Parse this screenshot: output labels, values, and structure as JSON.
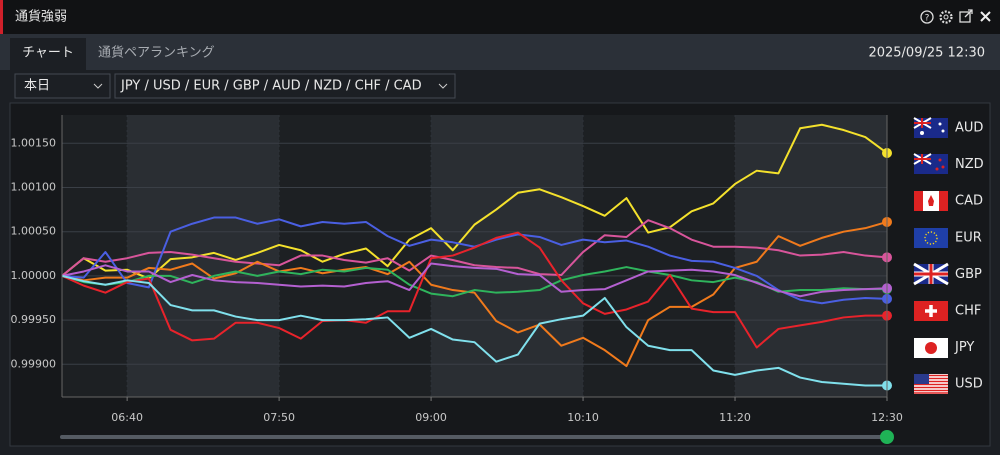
{
  "header": {
    "title": "通貨強弱"
  },
  "tabs": [
    "チャート",
    "通貨ペアランキング"
  ],
  "timestamp": "2025/09/25 12:30",
  "filters": {
    "period": "本日",
    "currencies": "JPY / USD / EUR / GBP / AUD / NZD / CHF / CAD"
  },
  "chart_data": {
    "type": "line",
    "categories": [
      null,
      null,
      null,
      "06:40",
      null,
      null,
      null,
      null,
      null,
      null,
      "07:50",
      null,
      null,
      null,
      null,
      null,
      null,
      "09:00",
      null,
      null,
      null,
      null,
      null,
      null,
      "10:10",
      null,
      null,
      null,
      null,
      null,
      null,
      "11:20",
      null,
      null,
      null,
      null,
      null,
      null,
      "12:30"
    ],
    "ylim": [
      0.99863,
      1.00182
    ],
    "yticks": [
      {
        "value": 0.999,
        "label": "0.99900"
      },
      {
        "value": 0.9995,
        "label": "0.99950"
      },
      {
        "value": 1,
        "label": "1.00000"
      },
      {
        "value": 1.0005,
        "label": "1.00050"
      },
      {
        "value": 1.001,
        "label": "1.00100"
      },
      {
        "value": 1.0015,
        "label": "1.00150"
      }
    ],
    "grid": true,
    "series": [
      {
        "name": "AUD",
        "color": "#f4e12c",
        "values": [
          1.0,
          1.0002,
          1.00006,
          1.00007,
          0.99997,
          1.00019,
          1.00021,
          1.00026,
          1.00018,
          1.00026,
          1.00035,
          1.00029,
          1.00016,
          1.00025,
          1.00031,
          1.00011,
          1.00041,
          1.00054,
          1.00029,
          1.00058,
          1.00075,
          1.00094,
          1.00098,
          1.00089,
          1.00079,
          1.00068,
          1.00088,
          1.00049,
          1.00055,
          1.00073,
          1.00082,
          1.00104,
          1.00119,
          1.00116,
          1.00167,
          1.00171,
          1.00165,
          1.00157,
          1.00139
        ]
      },
      {
        "name": "NZD",
        "color": "#d8559b",
        "values": [
          1.0,
          1.0002,
          1.00016,
          1.0002,
          1.00026,
          1.00027,
          1.00024,
          1.0002,
          1.00016,
          1.00014,
          1.00012,
          1.00023,
          1.00023,
          1.00018,
          1.00015,
          1.0002,
          1.00006,
          1.00023,
          1.00018,
          1.00012,
          1.0001,
          1.00009,
          1.00002,
          1.00001,
          1.00027,
          1.00046,
          1.00044,
          1.00063,
          1.00054,
          1.00041,
          1.00033,
          1.00033,
          1.00032,
          1.00029,
          1.00023,
          1.00024,
          1.00027,
          1.00023,
          1.00021
        ]
      },
      {
        "name": "CAD",
        "color": "#f07a1c",
        "values": [
          1.0,
          0.99995,
          0.99998,
          0.99998,
          1.00009,
          1.00007,
          1.00014,
          0.99997,
          1.00003,
          1.00016,
          1.00005,
          1.00009,
          1.00003,
          1.00007,
          1.0001,
          1.00002,
          1.00016,
          0.9999,
          0.99984,
          0.99981,
          0.99949,
          0.99936,
          0.99945,
          0.99921,
          0.9993,
          0.99916,
          0.99898,
          0.9995,
          0.99965,
          0.99965,
          0.99979,
          1.00009,
          1.00016,
          1.00045,
          1.00034,
          1.00043,
          1.0005,
          1.00054,
          1.00061
        ]
      },
      {
        "name": "EUR",
        "color": "#4a5fe2",
        "values": [
          1.0,
          0.99998,
          1.00027,
          0.99992,
          0.99987,
          1.0005,
          1.00059,
          1.00066,
          1.00066,
          1.00059,
          1.00064,
          1.00056,
          1.00061,
          1.00059,
          1.00061,
          1.00045,
          1.00034,
          1.00041,
          1.00038,
          1.00033,
          1.00041,
          1.00047,
          1.00044,
          1.00035,
          1.00041,
          1.00038,
          1.0004,
          1.00033,
          1.00023,
          1.00017,
          1.00016,
          1.00009,
          1.0,
          0.99984,
          0.99973,
          0.99969,
          0.99973,
          0.99975,
          0.99974
        ]
      },
      {
        "name": "GBP",
        "color": "#2fb45c",
        "values": [
          1.0,
          0.99993,
          0.9999,
          0.99993,
          1.0,
          1.0,
          0.99992,
          1.0,
          1.00005,
          1.0,
          1.00005,
          1.00002,
          1.00007,
          1.00005,
          1.00009,
          1.00007,
          0.9999,
          0.9998,
          0.99977,
          0.99984,
          0.99981,
          0.99982,
          0.99984,
          0.99995,
          1.00001,
          1.00005,
          1.0001,
          1.00005,
          1.00001,
          0.99995,
          0.99993,
          0.99998,
          0.99993,
          0.99982,
          0.99984,
          0.99984,
          0.99986,
          0.99985,
          0.99985
        ]
      },
      {
        "name": "CHF",
        "color": "#e8232b",
        "values": [
          1.0,
          0.99989,
          0.99981,
          0.99993,
          0.99997,
          0.99939,
          0.99927,
          0.99929,
          0.99947,
          0.99947,
          0.99941,
          0.99929,
          0.99949,
          0.9995,
          0.99947,
          0.9996,
          0.9996,
          1.0002,
          1.00023,
          1.00032,
          1.00043,
          1.00049,
          1.00032,
          0.99995,
          0.99969,
          0.99957,
          0.99962,
          0.99971,
          1.00001,
          0.99963,
          0.99959,
          0.99959,
          0.99919,
          0.9994,
          0.99944,
          0.99948,
          0.99953,
          0.99955,
          0.99955
        ]
      },
      {
        "name": "JPY",
        "color": "#b460d0",
        "values": [
          1.0,
          1.00005,
          1.00012,
          1.00005,
          1.00005,
          0.99993,
          1.00001,
          0.99995,
          0.99993,
          0.99992,
          0.9999,
          0.99988,
          0.99989,
          0.99988,
          0.99992,
          0.99994,
          0.99984,
          1.00014,
          1.00011,
          1.00009,
          1.00008,
          1.00002,
          1.00001,
          0.99982,
          0.99984,
          0.99985,
          0.99995,
          1.00005,
          1.00006,
          1.00007,
          1.00005,
          1.00001,
          0.99992,
          0.99983,
          0.99977,
          0.99982,
          0.99984,
          0.99985,
          0.99986
        ]
      },
      {
        "name": "USD",
        "color": "#80e0ec",
        "values": [
          1.0,
          0.99994,
          0.9999,
          0.99995,
          0.99992,
          0.99967,
          0.99961,
          0.99961,
          0.99954,
          0.9995,
          0.9995,
          0.99955,
          0.9995,
          0.9995,
          0.99951,
          0.99953,
          0.9993,
          0.9994,
          0.99928,
          0.99925,
          0.99903,
          0.99911,
          0.99946,
          0.99951,
          0.99955,
          0.99975,
          0.99942,
          0.99921,
          0.99916,
          0.99916,
          0.99893,
          0.99888,
          0.99893,
          0.99896,
          0.99885,
          0.9988,
          0.99878,
          0.99876,
          0.99876
        ]
      }
    ]
  }
}
